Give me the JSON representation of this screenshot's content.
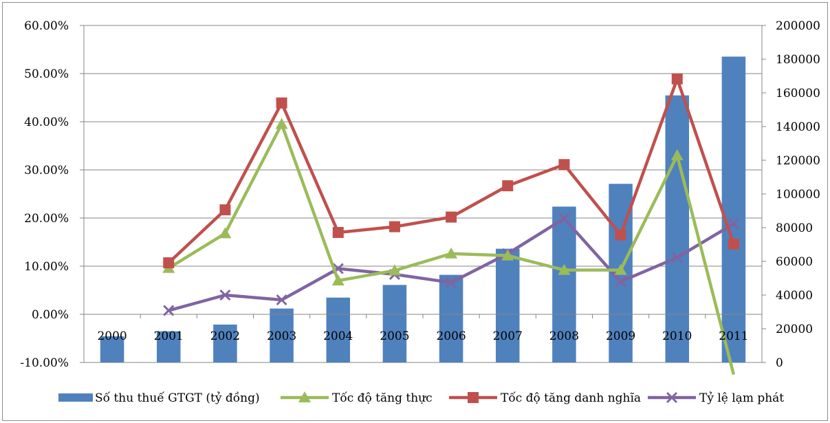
{
  "chart_data": {
    "type": "bar",
    "title": "",
    "categories": [
      "2000",
      "2001",
      "2002",
      "2003",
      "2004",
      "2005",
      "2006",
      "2007",
      "2008",
      "2009",
      "2010",
      "2011"
    ],
    "y_left": {
      "min": -0.1,
      "max": 0.6,
      "step": 0.1,
      "tick_labels": [
        "-10.00%",
        "0.00%",
        "10.00%",
        "20.00%",
        "30.00%",
        "40.00%",
        "50.00%",
        "60.00%"
      ]
    },
    "y_right": {
      "min": 0,
      "max": 200000,
      "step": 20000,
      "tick_labels": [
        "0",
        "20000",
        "40000",
        "60000",
        "80000",
        "100000",
        "120000",
        "140000",
        "160000",
        "180000",
        "200000"
      ]
    },
    "grid": "horizontal",
    "legend_position": "bottom",
    "bar_series": {
      "name": "Số thu thuế GTGT (tỷ đồng)",
      "axis": "right",
      "color": "#4f81bd",
      "values": [
        15500,
        18500,
        22500,
        32000,
        38500,
        46000,
        52000,
        67500,
        92500,
        106000,
        158500,
        181500
      ]
    },
    "line_series": [
      {
        "name": "Tốc độ tăng thực",
        "axis": "left",
        "color": "#9bbb59",
        "marker": "triangle",
        "values": [
          null,
          0.096,
          0.168,
          0.395,
          0.07,
          0.091,
          0.126,
          0.122,
          0.092,
          0.092,
          0.33,
          -0.125
        ]
      },
      {
        "name": "Tốc độ tăng danh nghĩa",
        "axis": "left",
        "color": "#c0504d",
        "marker": "square",
        "values": [
          null,
          0.107,
          0.217,
          0.439,
          0.17,
          0.182,
          0.202,
          0.267,
          0.311,
          0.165,
          0.489,
          0.146
        ]
      },
      {
        "name": "Tỷ lệ lạm phát",
        "axis": "left",
        "color": "#8064a2",
        "marker": "x",
        "values": [
          null,
          0.008,
          0.04,
          0.03,
          0.095,
          0.083,
          0.066,
          0.126,
          0.199,
          0.068,
          0.118,
          0.188
        ]
      }
    ]
  }
}
